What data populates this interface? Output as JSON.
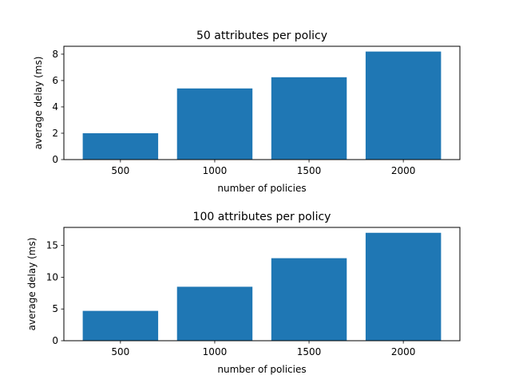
{
  "chart_data": [
    {
      "type": "bar",
      "title": "50 attributes per policy",
      "xlabel": "number of policies",
      "ylabel": "average delay (ms)",
      "categories": [
        "500",
        "1000",
        "1500",
        "2000"
      ],
      "values": [
        2.0,
        5.4,
        6.25,
        8.2
      ],
      "ylim": [
        0,
        8.6
      ],
      "yticks": [
        0,
        2,
        4,
        6,
        8
      ],
      "grid": false,
      "bar_color": "#1f77b4"
    },
    {
      "type": "bar",
      "title": "100 attributes per policy",
      "xlabel": "number of policies",
      "ylabel": "average delay (ms)",
      "categories": [
        "500",
        "1000",
        "1500",
        "2000"
      ],
      "values": [
        4.7,
        8.5,
        13.0,
        17.0
      ],
      "ylim": [
        0,
        17.85
      ],
      "yticks": [
        0,
        5,
        10,
        15
      ],
      "grid": false,
      "bar_color": "#1f77b4"
    }
  ]
}
